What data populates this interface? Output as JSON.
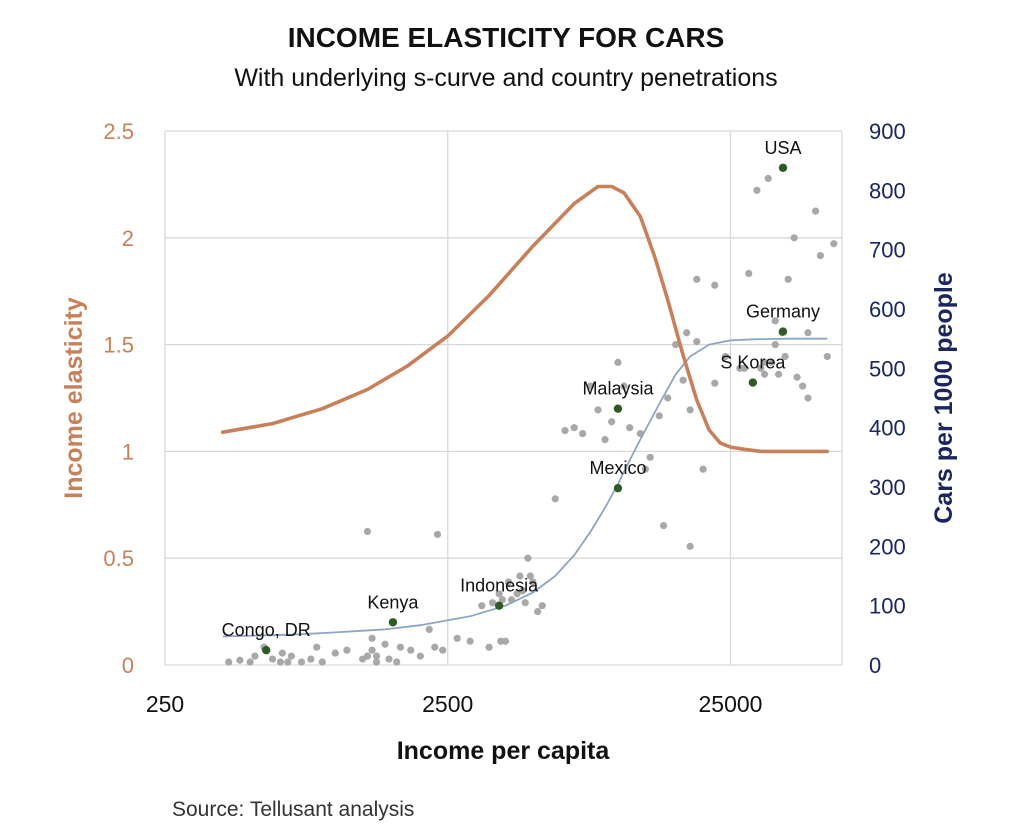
{
  "colors": {
    "elasticity": "#C8805A",
    "cars_axis": "#1B2560",
    "scurve": "#8FA3C4",
    "scatter": "#A8A8A8",
    "highlight": "#2E5A23",
    "grid": "#D9D9D9"
  },
  "source": "Source: Tellusant analysis",
  "chart_data": {
    "type": "line",
    "title": "INCOME ELASTICITY FOR CARS",
    "subtitle": "With underlying s-curve and country penetrations",
    "xlabel": "Income per capita",
    "ylabel_left": "Income elasticity",
    "ylabel_right": "Cars per 1000 people",
    "x_scale": "log",
    "xlim": [
      250,
      62000
    ],
    "ylim_left": [
      0,
      2.5
    ],
    "ylim_right": [
      0,
      900
    ],
    "x_ticks": [
      250,
      2500,
      25000
    ],
    "x_tick_labels": [
      "250",
      "2500",
      "25000"
    ],
    "y_left_ticks": [
      0,
      0.5,
      1,
      1.5,
      2,
      2.5
    ],
    "y_left_tick_labels": [
      "0",
      "0.5",
      "1",
      "1.5",
      "2",
      "2.5"
    ],
    "y_right_ticks": [
      0,
      100,
      200,
      300,
      400,
      500,
      600,
      700,
      800,
      900
    ],
    "y_right_tick_labels": [
      "0",
      "100",
      "200",
      "300",
      "400",
      "500",
      "600",
      "700",
      "800",
      "900"
    ],
    "grid": true,
    "elasticity_curve": {
      "x": [
        400,
        600,
        900,
        1300,
        1800,
        2500,
        3500,
        5000,
        7000,
        8500,
        9500,
        10500,
        12000,
        13500,
        15000,
        17000,
        19000,
        21000,
        23000,
        25000,
        28000,
        32000,
        40000,
        55000
      ],
      "y": [
        1.09,
        1.13,
        1.2,
        1.29,
        1.4,
        1.54,
        1.73,
        1.96,
        2.16,
        2.24,
        2.24,
        2.21,
        2.1,
        1.91,
        1.71,
        1.45,
        1.24,
        1.1,
        1.04,
        1.02,
        1.01,
        1.0,
        1.0,
        1.0
      ]
    },
    "s_curve": {
      "x": [
        400,
        700,
        1000,
        1500,
        2000,
        3000,
        4000,
        5000,
        6000,
        7000,
        8000,
        9000,
        10000,
        11000,
        12000,
        14000,
        16000,
        18000,
        21000,
        25000,
        30000,
        40000,
        55000
      ],
      "y": [
        48,
        51,
        55,
        60,
        67,
        82,
        100,
        122,
        150,
        185,
        225,
        265,
        305,
        345,
        380,
        440,
        490,
        520,
        540,
        547,
        549,
        550,
        550
      ]
    },
    "scatter": {
      "x": [
        420,
        460,
        500,
        520,
        560,
        600,
        640,
        650,
        680,
        700,
        760,
        820,
        860,
        900,
        1000,
        1100,
        1250,
        1300,
        1350,
        1350,
        1400,
        1400,
        1500,
        1550,
        1650,
        1700,
        1850,
        2000,
        2150,
        2250,
        2400,
        2700,
        3000,
        3300,
        3500,
        3600,
        3800,
        3850,
        3900,
        4000,
        4100,
        4200,
        4400,
        4500,
        4600,
        4700,
        4800,
        4900,
        5000,
        5200,
        5400,
        1300,
        2300,
        6000,
        6500,
        7000,
        7500,
        8000,
        8500,
        9000,
        9500,
        10000,
        10500,
        11000,
        12000,
        12500,
        13000,
        14000,
        15000,
        16000,
        17000,
        17500,
        18000,
        19000,
        20000,
        22000,
        24000,
        27000,
        29000,
        31000,
        32000,
        33000,
        34000,
        35000,
        36000,
        37000,
        39000,
        40000,
        42000,
        45000,
        47000,
        50000,
        52000,
        55000,
        58000,
        36000,
        38000,
        47000,
        28000,
        19000,
        22000,
        33000,
        43000,
        18000,
        14500
      ],
      "y": [
        5,
        8,
        5,
        15,
        30,
        10,
        5,
        20,
        5,
        15,
        5,
        10,
        30,
        5,
        20,
        25,
        10,
        15,
        45,
        25,
        5,
        15,
        35,
        10,
        5,
        30,
        25,
        15,
        60,
        30,
        25,
        45,
        40,
        100,
        30,
        105,
        120,
        40,
        110,
        40,
        140,
        110,
        120,
        150,
        125,
        105,
        180,
        150,
        140,
        90,
        100,
        225,
        220,
        280,
        395,
        400,
        390,
        470,
        430,
        380,
        410,
        510,
        470,
        400,
        390,
        330,
        350,
        420,
        450,
        540,
        480,
        560,
        430,
        545,
        330,
        640,
        520,
        500,
        660,
        800,
        500,
        490,
        820,
        510,
        580,
        490,
        520,
        650,
        720,
        470,
        450,
        765,
        690,
        520,
        710,
        540,
        560,
        560,
        500,
        650,
        475,
        510,
        485,
        200,
        235
      ],
      "highlighted": [
        {
          "label": "Congo, DR",
          "x": 570,
          "y": 25
        },
        {
          "label": "Kenya",
          "x": 1600,
          "y": 72
        },
        {
          "label": "Indonesia",
          "x": 3800,
          "y": 100
        },
        {
          "label": "Mexico",
          "x": 10000,
          "y": 298
        },
        {
          "label": "Malaysia",
          "x": 10000,
          "y": 432
        },
        {
          "label": "S Korea",
          "x": 30000,
          "y": 476
        },
        {
          "label": "Germany",
          "x": 45000,
          "y": 562
        },
        {
          "label": "USA",
          "x": 70000,
          "y": 838
        }
      ]
    }
  }
}
